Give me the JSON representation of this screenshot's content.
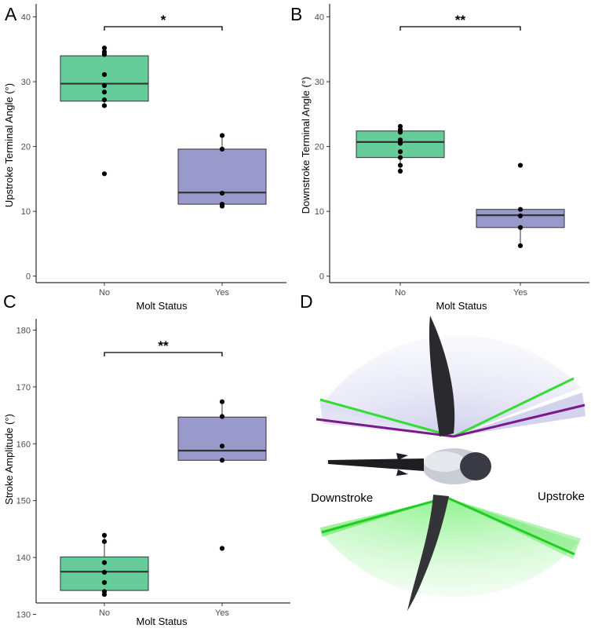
{
  "chart_data": [
    {
      "panel_label": "A",
      "type": "boxplot",
      "ylabel": "Upstroke Terminal Angle (°)",
      "xlabel": "Molt Status",
      "categories": [
        "No",
        "Yes"
      ],
      "ylim": [
        -1,
        42
      ],
      "yticks": [
        "0",
        "10",
        "20",
        "30",
        "40"
      ],
      "significance": "*",
      "boxes": [
        {
          "q1": 27.0,
          "median": 29.7,
          "q3": 34.0,
          "whisker_low": 26.2,
          "whisker_high": 35.2,
          "points": [
            35.2,
            34.6,
            34.2,
            31.1,
            29.4,
            28.4,
            27.2,
            26.3,
            15.8
          ]
        },
        {
          "q1": 11.1,
          "median": 12.9,
          "q3": 19.6,
          "whisker_low": 10.8,
          "whisker_high": 21.7,
          "points": [
            21.7,
            19.6,
            12.8,
            11.1,
            10.8
          ]
        }
      ]
    },
    {
      "panel_label": "B",
      "type": "boxplot",
      "ylabel": "Downstroke Terminal Angle (°)",
      "xlabel": "Molt Status",
      "categories": [
        "No",
        "Yes"
      ],
      "ylim": [
        -1,
        42
      ],
      "yticks": [
        "0",
        "10",
        "20",
        "30",
        "40"
      ],
      "significance": "**",
      "boxes": [
        {
          "q1": 18.3,
          "median": 20.7,
          "q3": 22.4,
          "whisker_low": 16.2,
          "whisker_high": 23.1,
          "points": [
            23.1,
            22.6,
            22.2,
            21.0,
            20.5,
            19.2,
            18.3,
            17.1,
            16.2
          ]
        },
        {
          "q1": 7.5,
          "median": 9.4,
          "q3": 10.3,
          "whisker_low": 4.7,
          "whisker_high": 10.3,
          "points": [
            17.1,
            10.3,
            9.3,
            7.5,
            4.7
          ]
        }
      ]
    },
    {
      "panel_label": "C",
      "type": "boxplot",
      "ylabel": "Stroke Amplitude (°)",
      "xlabel": "Molt Status",
      "categories": [
        "No",
        "Yes"
      ],
      "ylim": [
        132,
        182
      ],
      "yticks": [
        "130",
        "140",
        "150",
        "160",
        "170",
        "180"
      ],
      "significance": "**",
      "boxes": [
        {
          "q1": 134.2,
          "median": 137.5,
          "q3": 140.1,
          "whisker_low": 133.5,
          "whisker_high": 143.9,
          "points": [
            143.9,
            142.8,
            139.1,
            137.4,
            135.6,
            134.0,
            133.5
          ]
        },
        {
          "q1": 157.1,
          "median": 158.8,
          "q3": 164.7,
          "whisker_low": 157.1,
          "whisker_high": 167.4,
          "points": [
            167.4,
            164.8,
            159.6,
            157.1,
            141.6
          ]
        }
      ]
    }
  ],
  "colors": {
    "no_box": "#66cc99",
    "yes_box": "#9999cc",
    "green_line": "#33dd33",
    "purple_line": "#7a1a8a"
  },
  "panel_d": {
    "panel_label": "D",
    "left_label": "Downstroke",
    "right_label": "Upstroke"
  }
}
